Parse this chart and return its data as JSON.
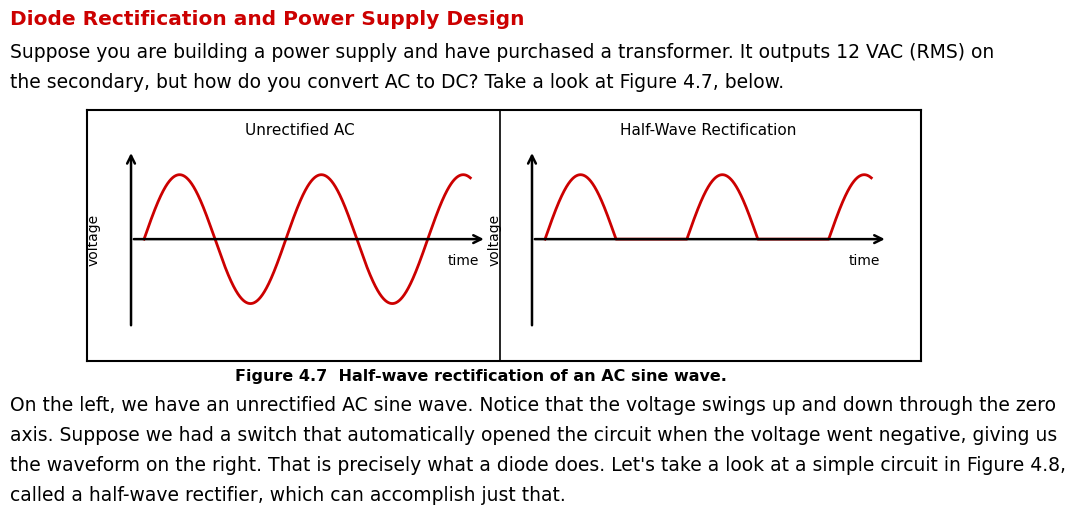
{
  "title": "Diode Rectification and Power Supply Design",
  "title_color": "#cc0000",
  "para1": "Suppose you are building a power supply and have purchased a transformer. It outputs 12 VAC (RMS) on",
  "para2": "the secondary, but how do you convert AC to DC? Take a look at Figure 4.7, below.",
  "left_panel_title": "Unrectified AC",
  "right_panel_title": "Half-Wave Rectification",
  "left_xlabel": "time",
  "right_xlabel": "time",
  "ylabel": "voltage",
  "figure_caption": "Figure 4.7  Half-wave rectification of an AC sine wave.",
  "para3": "On the left, we have an unrectified AC sine wave. Notice that the voltage swings up and down through the zero",
  "para4": "axis. Suppose we had a switch that automatically opened the circuit when the voltage went negative, giving us",
  "para5": "the waveform on the right. That is precisely what a diode does. Let's take a look at a simple circuit in Figure 4.8,",
  "para6": "called a half-wave rectifier, which can accomplish just that.",
  "wave_color": "#cc0000",
  "background_color": "#ffffff",
  "text_color": "#000000",
  "body_fontsize": 13.5,
  "title_fontsize": 14.5,
  "caption_fontsize": 11.5,
  "panel_title_fontsize": 11,
  "axis_label_fontsize": 10
}
